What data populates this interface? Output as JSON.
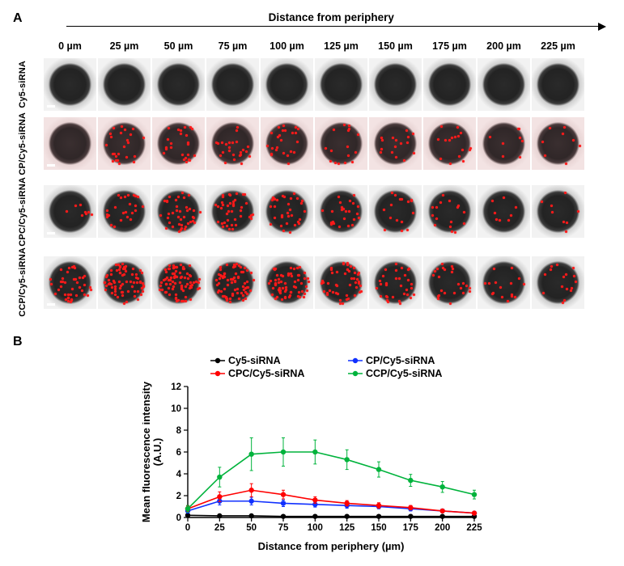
{
  "figure": {
    "panelA_label": "A",
    "panelB_label": "B",
    "top_heading": "Distance from periphery",
    "columns_um": [
      "0 µm",
      "25 µm",
      "50 µm",
      "75 µm",
      "100 µm",
      "125 µm",
      "150 µm",
      "175 µm",
      "200 µm",
      "225 µm"
    ],
    "rows": [
      {
        "label": "Cy5-siRNA",
        "tint": "gray",
        "dot_levels": [
          0,
          0,
          0,
          0,
          0,
          0,
          0,
          0,
          0,
          0
        ]
      },
      {
        "label": "CP/Cy5-siRNA",
        "tint": "pink",
        "dot_levels": [
          0,
          3,
          3,
          3,
          3,
          2,
          2,
          2,
          1,
          1
        ]
      },
      {
        "label": "CPC/Cy5-siRNA",
        "tint": "gray",
        "dot_levels": [
          1,
          3,
          5,
          5,
          4,
          3,
          2,
          2,
          1,
          1
        ]
      },
      {
        "label": "CCP/Cy5-siRNA",
        "tint": "gray",
        "dot_levels": [
          5,
          9,
          10,
          9,
          8,
          6,
          4,
          3,
          2,
          2
        ]
      }
    ],
    "dot_color": "#ff1a1a",
    "scalebar_color": "#ffffff"
  },
  "chart": {
    "type": "line",
    "xlabel": "Distance from periphery (µm)",
    "ylabel": "Mean fluorescence intensity\n(A.U.)",
    "x_ticks": [
      0,
      25,
      50,
      75,
      100,
      125,
      150,
      175,
      200,
      225
    ],
    "y_ticks": [
      0,
      2,
      4,
      6,
      8,
      10,
      12
    ],
    "xlim": [
      0,
      225
    ],
    "ylim": [
      0,
      12
    ],
    "background_color": "#ffffff",
    "axis_color": "#000000",
    "tick_length": 5,
    "line_width": 1.6,
    "marker_size": 3.2,
    "error_cap_width": 4,
    "label_fontsize": 13,
    "tick_fontsize": 11.5,
    "legend_fontsize": 12.5,
    "series": [
      {
        "name": "Cy5-siRNA",
        "color": "#000000",
        "y": [
          0.2,
          0.15,
          0.15,
          0.1,
          0.1,
          0.1,
          0.1,
          0.1,
          0.1,
          0.1
        ],
        "err": [
          0.05,
          0.05,
          0.05,
          0.05,
          0.05,
          0.05,
          0.05,
          0.05,
          0.05,
          0.05
        ]
      },
      {
        "name": "CP/Cy5-siRNA",
        "color": "#1030ff",
        "y": [
          0.6,
          1.5,
          1.5,
          1.3,
          1.2,
          1.1,
          1.0,
          0.8,
          0.6,
          0.4
        ],
        "err": [
          0.2,
          0.35,
          0.35,
          0.3,
          0.25,
          0.25,
          0.2,
          0.2,
          0.15,
          0.15
        ]
      },
      {
        "name": "CPC/Cy5-siRNA",
        "color": "#ff0000",
        "y": [
          0.8,
          1.9,
          2.5,
          2.1,
          1.6,
          1.3,
          1.1,
          0.9,
          0.6,
          0.4
        ],
        "err": [
          0.25,
          0.45,
          0.6,
          0.4,
          0.3,
          0.25,
          0.25,
          0.2,
          0.15,
          0.15
        ]
      },
      {
        "name": "CCP/Cy5-siRNA",
        "color": "#00b33c",
        "y": [
          0.8,
          3.7,
          5.8,
          6.0,
          6.0,
          5.3,
          4.4,
          3.4,
          2.8,
          2.1
        ],
        "err": [
          0.3,
          0.9,
          1.5,
          1.3,
          1.1,
          0.9,
          0.7,
          0.55,
          0.5,
          0.4
        ]
      }
    ],
    "legend_layout": [
      [
        "Cy5-siRNA",
        "CP/Cy5-siRNA"
      ],
      [
        "CPC/Cy5-siRNA",
        "CCP/Cy5-siRNA"
      ]
    ]
  }
}
